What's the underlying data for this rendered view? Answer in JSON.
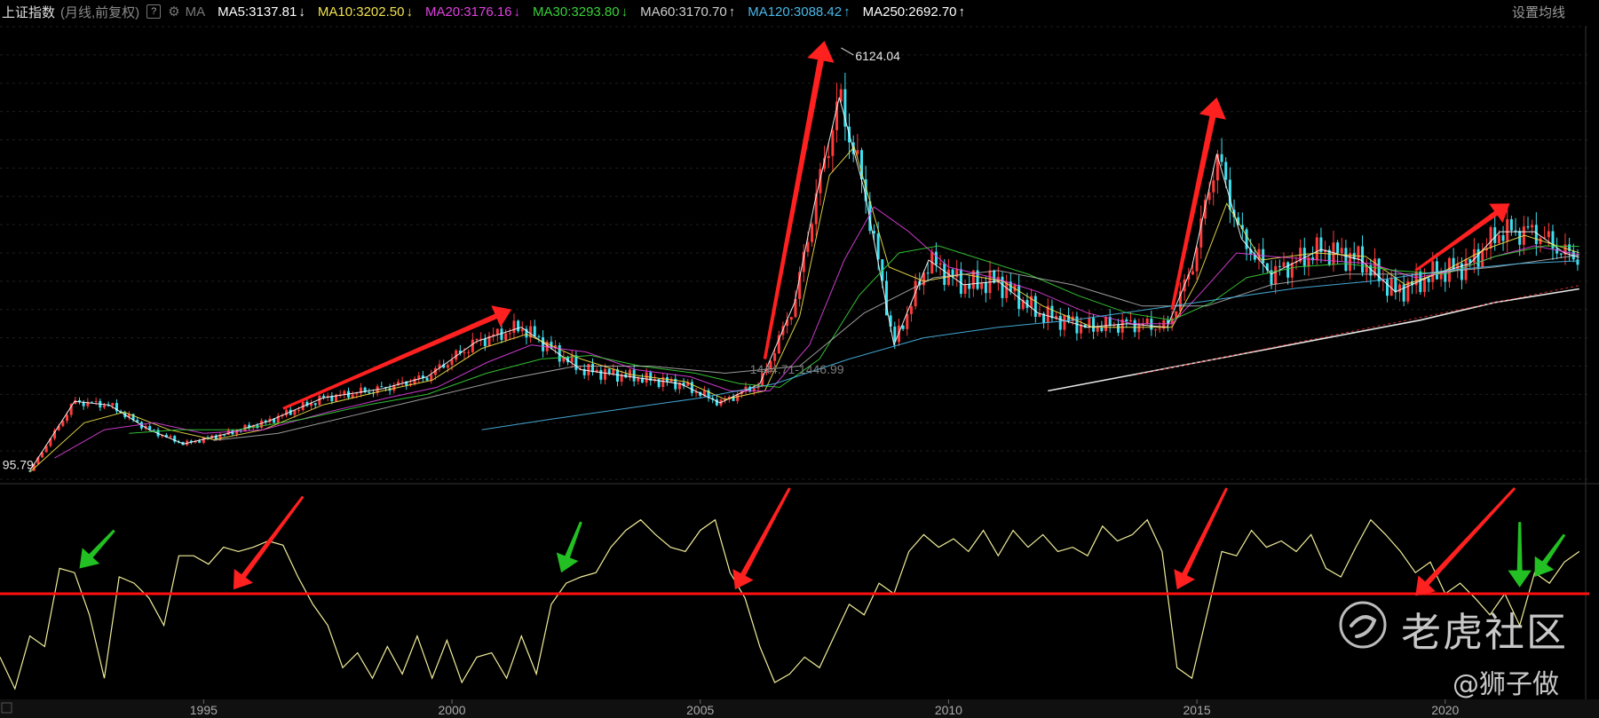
{
  "header": {
    "title": "上证指数",
    "subtitle": "(月线,前复权)",
    "help": "?",
    "ma_label": "MA",
    "settings": "设置均线",
    "ma_items": [
      {
        "label": "MA5:3137.81",
        "arrow": "↓",
        "color": "#ffffff"
      },
      {
        "label": "MA10:3202.50",
        "arrow": "↓",
        "color": "#f2e34c"
      },
      {
        "label": "MA20:3176.16",
        "arrow": "↓",
        "color": "#e040e0"
      },
      {
        "label": "MA30:3293.80",
        "arrow": "↓",
        "color": "#38d138"
      },
      {
        "label": "MA60:3170.70",
        "arrow": "↑",
        "color": "#cfcfcf"
      },
      {
        "label": "MA120:3088.42",
        "arrow": "↑",
        "color": "#4ab8e8"
      },
      {
        "label": "MA250:2692.70",
        "arrow": "↑",
        "color": "#ffffff"
      }
    ]
  },
  "watermark": {
    "brand": "老虎社区",
    "author": "@狮子做"
  },
  "colors": {
    "up": "#ff3b3b",
    "down": "#3ee0f0",
    "oscillator": "#f1ed9a",
    "threshold": "#ff1010",
    "arrow_red": "#ff2020",
    "arrow_green": "#22c022"
  },
  "chart_data": [
    {
      "type": "candlestick",
      "title": "上证指数",
      "xlim": [
        1990.9,
        2022.9
      ],
      "ylim": [
        0,
        6400
      ],
      "x_ticks": [
        "1995",
        "2000",
        "2005",
        "2010",
        "2015",
        "2020"
      ],
      "annotations": [
        {
          "text": "6124.04",
          "x": 2007.8,
          "y": 6124.04
        },
        {
          "text": "95.79",
          "x": 1990.95,
          "y": 95.79
        },
        {
          "text": "1444.71-1446.99",
          "x": 2006.0,
          "y": 1445.8
        }
      ],
      "series": [
        {
          "name": "MA5",
          "x": [
            1991.5,
            1992.4,
            1993.1,
            1993.9,
            1994.6,
            1995.5,
            1996.3,
            1997.4,
            1998.6,
            1999.5,
            2000.5,
            2001.4,
            2002.6,
            2003.6,
            2004.6,
            2005.4,
            2006.2,
            2006.9,
            2007.3,
            2007.8,
            2008.3,
            2008.9,
            2009.6,
            2010.3,
            2011.0,
            2011.8,
            2012.8,
            2013.6,
            2014.4,
            2014.9,
            2015.4,
            2015.9,
            2016.5,
            2017.5,
            2018.3,
            2019.0,
            2019.8,
            2020.5,
            2021.1,
            2021.8,
            2022.4,
            2022.7
          ],
          "y": [
            120,
            1100,
            1050,
            700,
            500,
            650,
            820,
            1150,
            1280,
            1450,
            1950,
            2150,
            1550,
            1450,
            1350,
            1080,
            1350,
            2500,
            3900,
            5400,
            4100,
            1900,
            3100,
            2750,
            2800,
            2350,
            2150,
            2200,
            2150,
            3000,
            4600,
            3400,
            2900,
            3250,
            3100,
            2650,
            2900,
            3050,
            3500,
            3500,
            3200,
            3137
          ]
        },
        {
          "name": "MA10",
          "x": [
            1991.5,
            1992.6,
            1993.4,
            1994.3,
            1995.2,
            1996.2,
            1997.4,
            1998.6,
            1999.6,
            2000.6,
            2001.5,
            2002.6,
            2003.6,
            2004.7,
            2005.5,
            2006.3,
            2007.0,
            2007.6,
            2008.1,
            2008.8,
            2009.5,
            2010.3,
            2011.1,
            2011.9,
            2012.9,
            2013.7,
            2014.5,
            2015.0,
            2015.6,
            2016.3,
            2017.4,
            2018.4,
            2019.2,
            2020.0,
            2020.8,
            2021.6,
            2022.7
          ],
          "y": [
            100,
            800,
            950,
            700,
            560,
            700,
            1050,
            1250,
            1400,
            1850,
            2050,
            1700,
            1480,
            1380,
            1130,
            1250,
            2300,
            4300,
            4700,
            3000,
            2800,
            2900,
            2800,
            2450,
            2150,
            2150,
            2150,
            2800,
            3900,
            3100,
            3200,
            3150,
            2750,
            2950,
            3250,
            3450,
            3202
          ]
        },
        {
          "name": "MA20",
          "x": [
            1992.0,
            1993.0,
            1994.0,
            1995.0,
            1996.2,
            1997.5,
            1998.7,
            1999.7,
            2000.7,
            2001.6,
            2002.7,
            2003.7,
            2004.8,
            2005.6,
            2006.4,
            2007.2,
            2007.9,
            2008.5,
            2009.2,
            2010.0,
            2010.9,
            2011.8,
            2012.8,
            2013.7,
            2014.5,
            2015.1,
            2015.8,
            2016.5,
            2017.5,
            2018.5,
            2019.4,
            2020.2,
            2021.0,
            2021.8,
            2022.7
          ],
          "y": [
            300,
            700,
            800,
            650,
            700,
            950,
            1150,
            1300,
            1650,
            1900,
            1800,
            1550,
            1450,
            1250,
            1250,
            1900,
            3100,
            3850,
            3500,
            3000,
            2850,
            2650,
            2350,
            2200,
            2200,
            2650,
            3200,
            3150,
            3100,
            3050,
            2850,
            2950,
            3150,
            3300,
            3176
          ]
        },
        {
          "name": "MA30",
          "x": [
            1993.5,
            1994.5,
            1995.7,
            1997.0,
            1998.3,
            1999.5,
            2000.7,
            2001.8,
            2002.8,
            2003.8,
            2004.9,
            2005.8,
            2006.6,
            2007.4,
            2008.2,
            2009.0,
            2009.8,
            2010.7,
            2011.6,
            2012.6,
            2013.6,
            2014.5,
            2015.3,
            2016.0,
            2017.0,
            2018.0,
            2019.0,
            2020.0,
            2021.0,
            2022.0,
            2022.7
          ],
          "y": [
            650,
            700,
            700,
            850,
            1050,
            1200,
            1500,
            1700,
            1750,
            1600,
            1500,
            1350,
            1300,
            1700,
            2600,
            3200,
            3300,
            3100,
            2900,
            2600,
            2350,
            2250,
            2500,
            2850,
            3000,
            3050,
            2950,
            2900,
            3150,
            3300,
            3293
          ]
        },
        {
          "name": "MA60",
          "x": [
            1995.2,
            1996.5,
            1998.0,
            1999.5,
            2001.0,
            2002.5,
            2004.0,
            2005.5,
            2007.0,
            2008.3,
            2009.7,
            2011.0,
            2012.5,
            2013.9,
            2015.2,
            2016.5,
            2018.0,
            2019.5,
            2021.0,
            2022.7
          ],
          "y": [
            550,
            650,
            900,
            1150,
            1400,
            1600,
            1600,
            1500,
            1600,
            2350,
            2850,
            2950,
            2750,
            2450,
            2450,
            2750,
            2900,
            2900,
            3000,
            3170
          ]
        },
        {
          "name": "MA120",
          "x": [
            2000.6,
            2002.0,
            2003.5,
            2005.0,
            2006.5,
            2008.0,
            2009.5,
            2011.0,
            2012.5,
            2014.0,
            2015.5,
            2017.0,
            2018.5,
            2020.0,
            2021.5,
            2022.7
          ],
          "y": [
            700,
            850,
            1000,
            1150,
            1350,
            1700,
            2000,
            2150,
            2250,
            2400,
            2550,
            2700,
            2800,
            2950,
            3050,
            3088
          ]
        },
        {
          "name": "MA250",
          "x": [
            2012.0,
            2013.5,
            2015.0,
            2016.5,
            2018.0,
            2019.5,
            2021.0,
            2022.7
          ],
          "y": [
            1250,
            1450,
            1650,
            1850,
            2050,
            2250,
            2500,
            2692
          ]
        }
      ]
    },
    {
      "type": "line",
      "threshold": 50,
      "ylim": [
        0,
        100
      ],
      "series": [
        {
          "name": "oscillator",
          "x": [
            1990.9,
            1991.2,
            1991.5,
            1991.8,
            1992.1,
            1992.4,
            1992.7,
            1993.0,
            1993.3,
            1993.6,
            1993.9,
            1994.2,
            1994.5,
            1994.8,
            1995.1,
            1995.4,
            1995.7,
            1996.0,
            1996.3,
            1996.6,
            1996.9,
            1997.2,
            1997.5,
            1997.8,
            1998.1,
            1998.4,
            1998.7,
            1999.0,
            1999.3,
            1999.6,
            1999.9,
            2000.2,
            2000.5,
            2000.8,
            2001.1,
            2001.4,
            2001.7,
            2002.0,
            2002.3,
            2002.6,
            2002.9,
            2003.2,
            2003.5,
            2003.8,
            2004.1,
            2004.4,
            2004.7,
            2005.0,
            2005.3,
            2005.6,
            2005.9,
            2006.2,
            2006.5,
            2006.8,
            2007.1,
            2007.4,
            2007.7,
            2008.0,
            2008.3,
            2008.6,
            2008.9,
            2009.2,
            2009.5,
            2009.8,
            2010.1,
            2010.4,
            2010.7,
            2011.0,
            2011.3,
            2011.6,
            2011.9,
            2012.2,
            2012.5,
            2012.8,
            2013.1,
            2013.4,
            2013.7,
            2014.0,
            2014.3,
            2014.6,
            2014.9,
            2015.2,
            2015.5,
            2015.8,
            2016.1,
            2016.4,
            2016.7,
            2017.0,
            2017.3,
            2017.6,
            2017.9,
            2018.2,
            2018.5,
            2018.8,
            2019.1,
            2019.4,
            2019.7,
            2020.0,
            2020.3,
            2020.6,
            2020.9,
            2021.2,
            2021.5,
            2021.8,
            2022.1,
            2022.4,
            2022.7
          ],
          "y": [
            20,
            5,
            30,
            25,
            62,
            60,
            40,
            10,
            58,
            55,
            48,
            35,
            68,
            68,
            64,
            72,
            70,
            72,
            75,
            73,
            58,
            45,
            35,
            15,
            22,
            10,
            25,
            12,
            30,
            10,
            28,
            8,
            20,
            22,
            10,
            30,
            12,
            45,
            55,
            58,
            60,
            72,
            80,
            85,
            78,
            72,
            70,
            80,
            85,
            60,
            48,
            25,
            8,
            12,
            20,
            15,
            30,
            45,
            40,
            55,
            50,
            70,
            78,
            72,
            76,
            70,
            80,
            68,
            80,
            72,
            78,
            70,
            72,
            68,
            82,
            75,
            78,
            85,
            70,
            15,
            10,
            40,
            70,
            68,
            80,
            72,
            75,
            70,
            78,
            62,
            58,
            72,
            85,
            78,
            70,
            60,
            65,
            50,
            55,
            48,
            40,
            50,
            35,
            60,
            55,
            65,
            70
          ]
        }
      ]
    }
  ]
}
